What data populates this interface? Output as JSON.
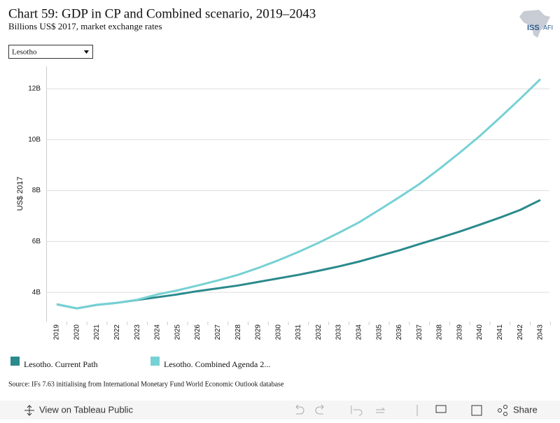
{
  "chart_data": {
    "type": "line",
    "title": "Chart 59: GDP in CP and Combined scenario, 2019–2043",
    "subtitle": "Billions US$ 2017, market exchange rates",
    "y_label": "US$ 2017",
    "categories": [
      "2019",
      "2020",
      "2021",
      "2022",
      "2023",
      "2024",
      "2025",
      "2026",
      "2027",
      "2028",
      "2029",
      "2030",
      "2031",
      "2032",
      "2033",
      "2034",
      "2035",
      "2036",
      "2037",
      "2038",
      "2039",
      "2040",
      "2041",
      "2042",
      "2043"
    ],
    "series": [
      {
        "name": "Lesotho. Current Path",
        "color": "#2a8a8c",
        "values": [
          3.53,
          3.37,
          3.51,
          3.59,
          3.7,
          3.81,
          3.92,
          4.05,
          4.16,
          4.27,
          4.41,
          4.55,
          4.69,
          4.85,
          5.02,
          5.21,
          5.43,
          5.65,
          5.9,
          6.14,
          6.39,
          6.66,
          6.94,
          7.24,
          7.63
        ]
      },
      {
        "name": "Lesotho. Combined Agenda 2...",
        "color": "#76d1d4",
        "values": [
          3.53,
          3.37,
          3.51,
          3.59,
          3.71,
          3.92,
          4.08,
          4.27,
          4.47,
          4.69,
          4.96,
          5.26,
          5.59,
          5.95,
          6.34,
          6.75,
          7.24,
          7.74,
          8.26,
          8.86,
          9.49,
          10.15,
          10.87,
          11.61,
          12.38
        ]
      }
    ],
    "ylim": [
      2.85,
      12.88
    ],
    "yticks": [
      {
        "value": 4,
        "label": "4B"
      },
      {
        "value": 6,
        "label": "6B"
      },
      {
        "value": 8,
        "label": "8B"
      },
      {
        "value": 10,
        "label": "10B"
      },
      {
        "value": 12,
        "label": "12B"
      }
    ],
    "grid": true
  },
  "dropdown": "Lesotho",
  "logo": {
    "left": "ISS",
    "right": "AFI"
  },
  "source": "Source: IFs 7.63 initialising from International Monetary Fund World Economic Outlook database",
  "toolbar": {
    "view": "View on Tableau Public",
    "share": "Share"
  }
}
